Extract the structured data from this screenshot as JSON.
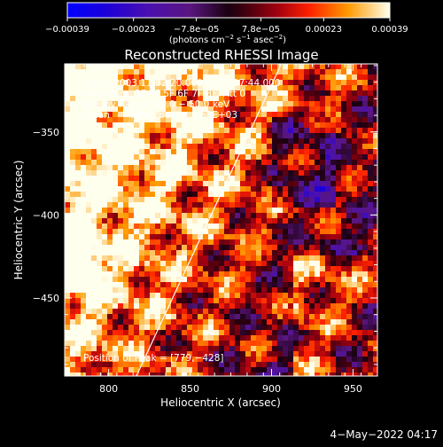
{
  "chart_data": {
    "type": "heatmap",
    "title": "Reconstructed RHESSI Image",
    "xlabel": "Heliocentric X (arcsec)",
    "ylabel": "Heliocentric Y (arcsec)",
    "xlim": [
      773,
      965
    ],
    "ylim": [
      -497,
      -309
    ],
    "xticks": [
      800,
      850,
      900,
      950
    ],
    "xtick_labels": [
      "800",
      "850",
      "900",
      "950"
    ],
    "yticks": [
      -350,
      -400,
      -450
    ],
    "ytick_labels": [
      "−350",
      "−400",
      "−450"
    ],
    "colorbar": {
      "range": [
        -0.00039,
        0.00039
      ],
      "ticks": [
        -0.00039,
        -0.00023,
        -7.8e-05,
        7.8e-05,
        0.00023,
        0.00039
      ],
      "tick_labels": [
        "−0.00039",
        "−0.00023",
        "−7.8e−05",
        "7.8e−05",
        "0.00023",
        "0.00039"
      ],
      "units_base": "(photons cm",
      "units_exp1": "−2",
      "units_mid": " s",
      "units_exp2": "−1",
      "units_after": " asec",
      "units_exp3": "−2",
      "units_end": ")"
    },
    "annotations": {
      "time": "24-Jul-2003 11:32:20.000 to 11:37:44.000",
      "detectors": "Detectors: 3F 4F 5F 6F 7F 8F, Att 0",
      "energy": "Energy Range: 25.0 − 50.0 keV",
      "clean_label": "Clean",
      "total_counts": "Total counts: 5.68E+03",
      "peak": "Position of Peak = [779,−428]"
    },
    "peak": [
      779,
      -428
    ],
    "limb_line": [
      [
        817,
        -497
      ],
      [
        906,
        -309
      ]
    ],
    "grid": false,
    "date_stamp": "4−May−2022 04:17"
  }
}
